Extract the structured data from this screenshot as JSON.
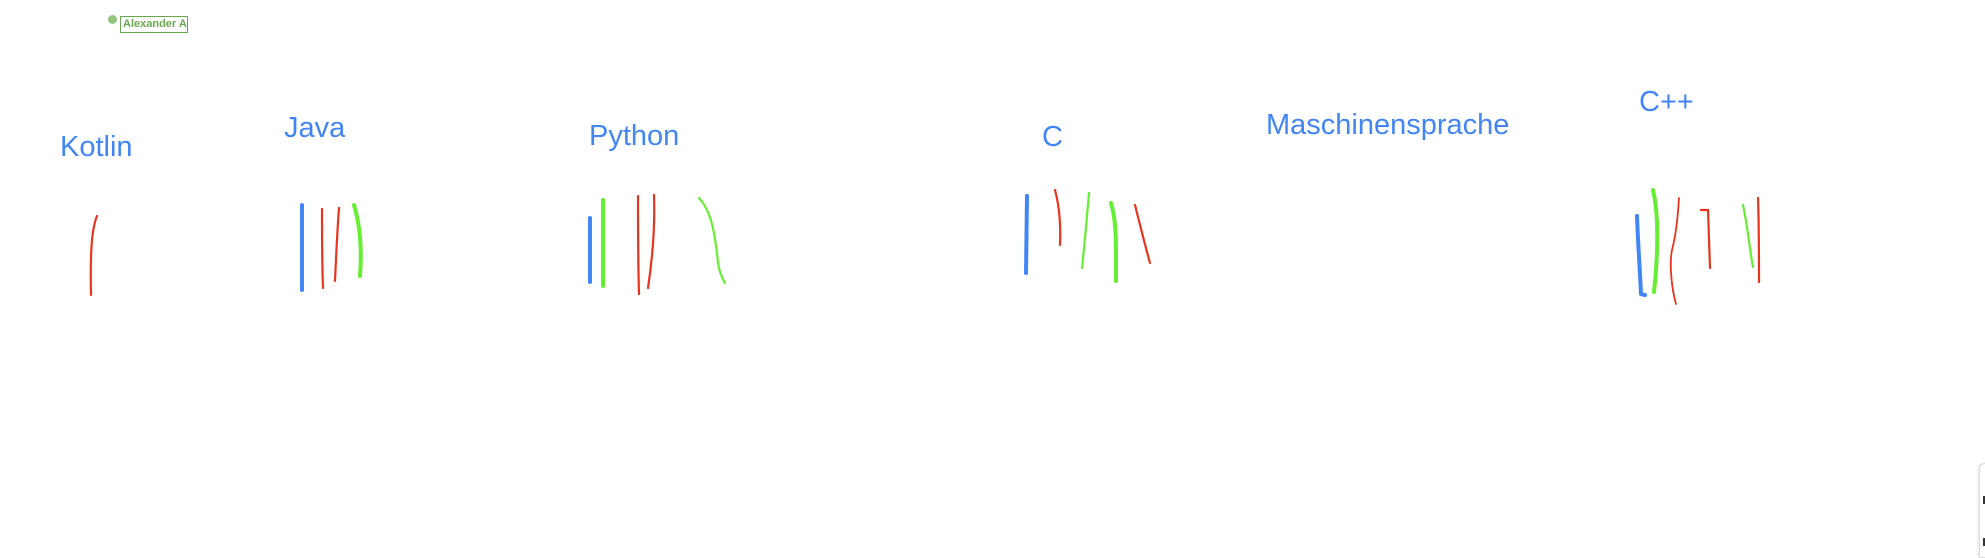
{
  "board": {
    "labels": [
      "Kotlin",
      "Java",
      "Python",
      "C",
      "Maschinensprache",
      "C++"
    ],
    "colors": {
      "label": "#4285f4",
      "blue": "#4285f4",
      "green": "#66ee33",
      "red": "#e8341c"
    }
  },
  "collaborator": {
    "name": "Alexander A",
    "color": "#6aa84f",
    "dot_color": "#93c47d"
  }
}
